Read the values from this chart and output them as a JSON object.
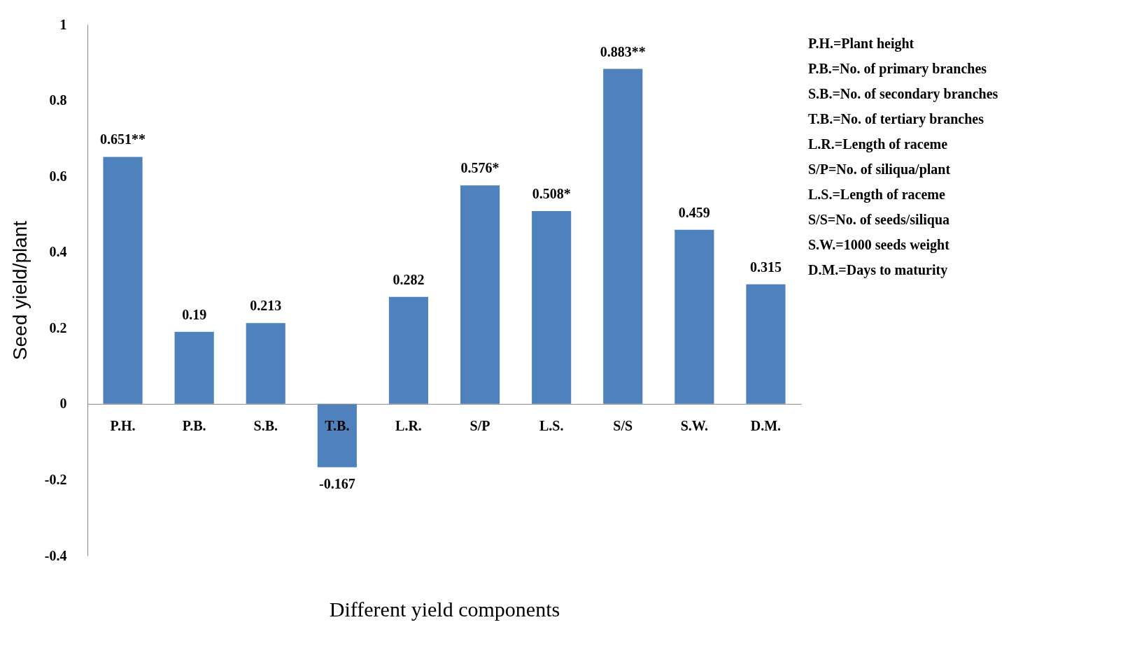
{
  "chart_data": {
    "type": "bar",
    "xlabel": "Different yield components",
    "ylabel": "Seed yield/plant",
    "categories": [
      "P.H.",
      "P.B.",
      "S.B.",
      "T.B.",
      "L.R.",
      "S/P",
      "L.S.",
      "S/S",
      "S.W.",
      "D.M."
    ],
    "values": [
      0.651,
      0.19,
      0.213,
      -0.167,
      0.282,
      0.576,
      0.508,
      0.883,
      0.459,
      0.315
    ],
    "value_labels": [
      "0.651**",
      "0.19",
      "0.213",
      "-0.167",
      "0.282",
      "0.576*",
      "0.508*",
      "0.883**",
      "0.459",
      "0.315"
    ],
    "color": "#4f81bd",
    "ylim": [
      -0.4,
      1
    ],
    "yticks": [
      -0.4,
      -0.2,
      0,
      0.2,
      0.4,
      0.6,
      0.8,
      1
    ],
    "grid": false,
    "annotations": [
      "P.H.=Plant height",
      "P.B.=No. of primary branches",
      "S.B.=No. of secondary branches",
      "T.B.=No. of tertiary branches",
      "L.R.=Length of raceme",
      "S/P=No. of siliqua/plant",
      "L.S.=Length of raceme",
      "S/S=No. of seeds/siliqua",
      "S.W.=1000 seeds weight",
      "D.M.=Days to maturity"
    ]
  }
}
